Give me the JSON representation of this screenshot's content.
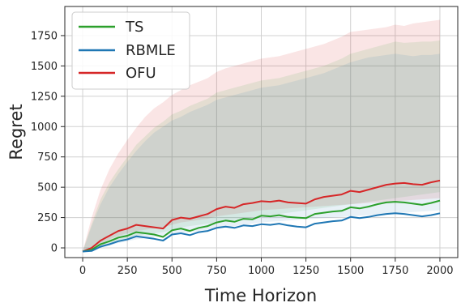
{
  "chart_data": {
    "type": "line",
    "xlabel": "Time Horizon",
    "ylabel": "Regret",
    "xlim": [
      -100,
      2100
    ],
    "ylim": [
      -80,
      1990
    ],
    "x_ticks": [
      0,
      250,
      500,
      750,
      1000,
      1250,
      1500,
      1750,
      2000
    ],
    "y_ticks": [
      0,
      250,
      500,
      750,
      1000,
      1250,
      1500,
      1750
    ],
    "grid": true,
    "legend_position": "top-left",
    "x": [
      0,
      50,
      100,
      150,
      200,
      250,
      300,
      350,
      400,
      450,
      500,
      550,
      600,
      650,
      700,
      750,
      800,
      850,
      900,
      950,
      1000,
      1050,
      1100,
      1150,
      1200,
      1250,
      1300,
      1350,
      1400,
      1450,
      1500,
      1550,
      1600,
      1650,
      1700,
      1750,
      1800,
      1850,
      1900,
      1950,
      2000
    ],
    "series": [
      {
        "name": "TS",
        "color": "#2ca02c",
        "values": [
          -30,
          -15,
          30,
          55,
          85,
          100,
          130,
          120,
          110,
          90,
          145,
          160,
          140,
          165,
          180,
          210,
          225,
          215,
          240,
          235,
          265,
          260,
          270,
          255,
          250,
          245,
          280,
          290,
          300,
          305,
          335,
          325,
          340,
          360,
          375,
          380,
          375,
          365,
          355,
          370,
          390
        ],
        "band_upper": [
          -30,
          200,
          400,
          540,
          650,
          750,
          850,
          920,
          990,
          1040,
          1100,
          1130,
          1170,
          1200,
          1230,
          1280,
          1300,
          1320,
          1340,
          1360,
          1380,
          1390,
          1400,
          1420,
          1440,
          1460,
          1480,
          1500,
          1530,
          1560,
          1600,
          1620,
          1640,
          1660,
          1680,
          1700,
          1690,
          1695,
          1700,
          1700,
          1710
        ],
        "band_lower": [
          -30,
          -20,
          20,
          40,
          60,
          80,
          100,
          110,
          120,
          130,
          150,
          170,
          180,
          190,
          200,
          210,
          220,
          230,
          240,
          250,
          260,
          270,
          280,
          290,
          300,
          310,
          320,
          330,
          340,
          350,
          360,
          370,
          380,
          390,
          400,
          410,
          420,
          430,
          440,
          450,
          460
        ]
      },
      {
        "name": "RBMLE",
        "color": "#1f77b4",
        "values": [
          -30,
          -25,
          10,
          30,
          55,
          70,
          95,
          85,
          75,
          60,
          110,
          120,
          105,
          130,
          140,
          165,
          175,
          165,
          185,
          180,
          195,
          190,
          200,
          185,
          175,
          170,
          200,
          210,
          220,
          225,
          255,
          245,
          255,
          270,
          280,
          285,
          280,
          270,
          260,
          270,
          285
        ],
        "band_upper": [
          -30,
          180,
          360,
          500,
          610,
          710,
          800,
          880,
          950,
          1000,
          1050,
          1080,
          1120,
          1150,
          1180,
          1220,
          1240,
          1260,
          1280,
          1300,
          1320,
          1330,
          1340,
          1360,
          1380,
          1400,
          1420,
          1440,
          1470,
          1500,
          1530,
          1550,
          1570,
          1580,
          1590,
          1600,
          1590,
          1580,
          1590,
          1590,
          1600
        ],
        "band_lower": [
          -30,
          -25,
          0,
          20,
          40,
          55,
          70,
          80,
          90,
          100,
          110,
          120,
          130,
          140,
          150,
          160,
          170,
          180,
          190,
          200,
          210,
          215,
          220,
          225,
          230,
          235,
          240,
          245,
          250,
          255,
          260,
          265,
          270,
          275,
          280,
          285,
          290,
          295,
          300,
          305,
          310
        ]
      },
      {
        "name": "OFU",
        "color": "#d62728",
        "values": [
          -30,
          0,
          60,
          100,
          140,
          160,
          190,
          180,
          170,
          160,
          230,
          250,
          240,
          260,
          280,
          320,
          340,
          330,
          360,
          370,
          385,
          380,
          390,
          375,
          370,
          365,
          400,
          420,
          430,
          440,
          470,
          460,
          480,
          500,
          520,
          530,
          535,
          525,
          520,
          540,
          555
        ],
        "band_upper": [
          -30,
          250,
          480,
          650,
          780,
          890,
          990,
          1080,
          1150,
          1200,
          1260,
          1300,
          1340,
          1370,
          1400,
          1450,
          1480,
          1500,
          1520,
          1540,
          1560,
          1570,
          1580,
          1600,
          1620,
          1640,
          1660,
          1680,
          1710,
          1740,
          1780,
          1790,
          1800,
          1810,
          1820,
          1840,
          1830,
          1850,
          1860,
          1870,
          1880
        ],
        "band_lower": [
          -30,
          -10,
          40,
          70,
          100,
          120,
          140,
          150,
          160,
          170,
          190,
          210,
          220,
          230,
          240,
          260,
          270,
          280,
          290,
          300,
          310,
          315,
          320,
          325,
          330,
          335,
          340,
          345,
          350,
          355,
          360,
          365,
          370,
          375,
          380,
          385,
          390,
          395,
          400,
          405,
          410
        ]
      }
    ]
  }
}
